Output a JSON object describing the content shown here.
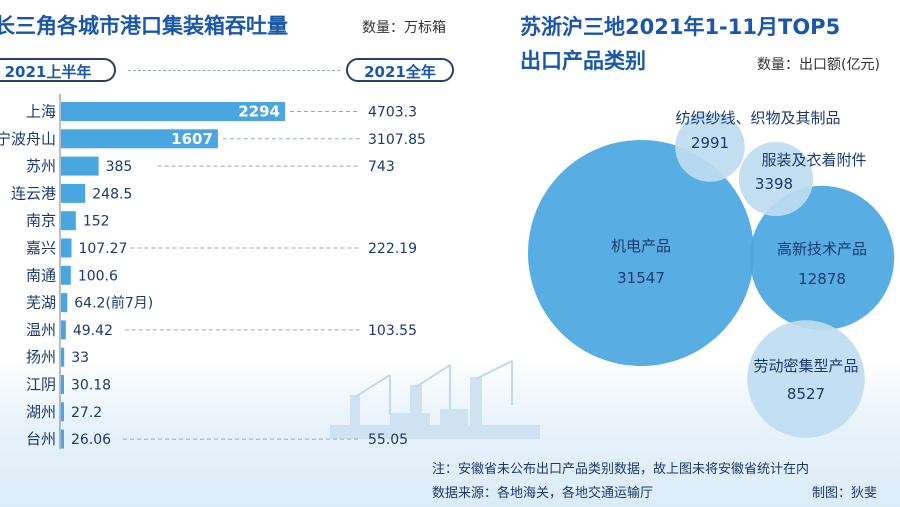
{
  "left_chart": {
    "title": "长三角各城市港口集装箱吞吐量",
    "unit": "数量：万标箱",
    "pill_h1": "2021上半年",
    "pill_full": "2021全年"
  },
  "right_chart": {
    "title_line1": "苏浙沪三地2021年1-11月TOP5",
    "title_line2": "出口产品类别",
    "unit": "数量：出口额(亿元)"
  },
  "footer": {
    "note": "注：安徽省未公布出口产品类别数据，故上图未将安徽省统计在内",
    "source": "数据来源：各地海关，各地交通运输厅",
    "maker": "制图：狄斐"
  },
  "colors": {
    "bar": "#4aa6e0",
    "title": "#1b57a8",
    "bubble_large": "#4aa6e0",
    "bubble_small": "#bfdcf1"
  },
  "chart_data": [
    {
      "type": "bar",
      "orientation": "horizontal",
      "title": "长三角各城市港口集装箱吞吐量",
      "unit": "万标箱",
      "categories": [
        "上海",
        "宁波舟山",
        "苏州",
        "连云港",
        "南京",
        "嘉兴",
        "南通",
        "芜湖",
        "温州",
        "扬州",
        "江阴",
        "湖州",
        "台州"
      ],
      "series": [
        {
          "name": "2021上半年",
          "values": [
            2294,
            1607,
            385,
            248.5,
            152,
            107.27,
            100.6,
            64.2,
            49.42,
            33,
            30.18,
            27.2,
            26.06
          ],
          "labels": [
            "2294",
            "1607",
            "385",
            "248.5",
            "152",
            "107.27",
            "100.6",
            "64.2(前7月)",
            "49.42",
            "33",
            "30.18",
            "27.2",
            "26.06"
          ]
        },
        {
          "name": "2021全年",
          "values": [
            4703.3,
            3107.85,
            743,
            null,
            null,
            222.19,
            null,
            null,
            103.55,
            null,
            null,
            null,
            55.05
          ],
          "labels": [
            "4703.3",
            "3107.85",
            "743",
            "",
            "",
            "222.19",
            "",
            "",
            "103.55",
            "",
            "",
            "",
            "55.05"
          ]
        }
      ],
      "legend": "top"
    },
    {
      "type": "bubble",
      "title": "苏浙沪三地2021年1-11月TOP5出口产品类别",
      "unit": "出口额(亿元)",
      "items": [
        {
          "name": "机电产品",
          "value": 31547
        },
        {
          "name": "高新技术产品",
          "value": 12878
        },
        {
          "name": "劳动密集型产品",
          "value": 8527
        },
        {
          "name": "服装及衣着附件",
          "value": 3398
        },
        {
          "name": "纺织纱线、织物及其制品",
          "value": 2991
        }
      ]
    }
  ]
}
